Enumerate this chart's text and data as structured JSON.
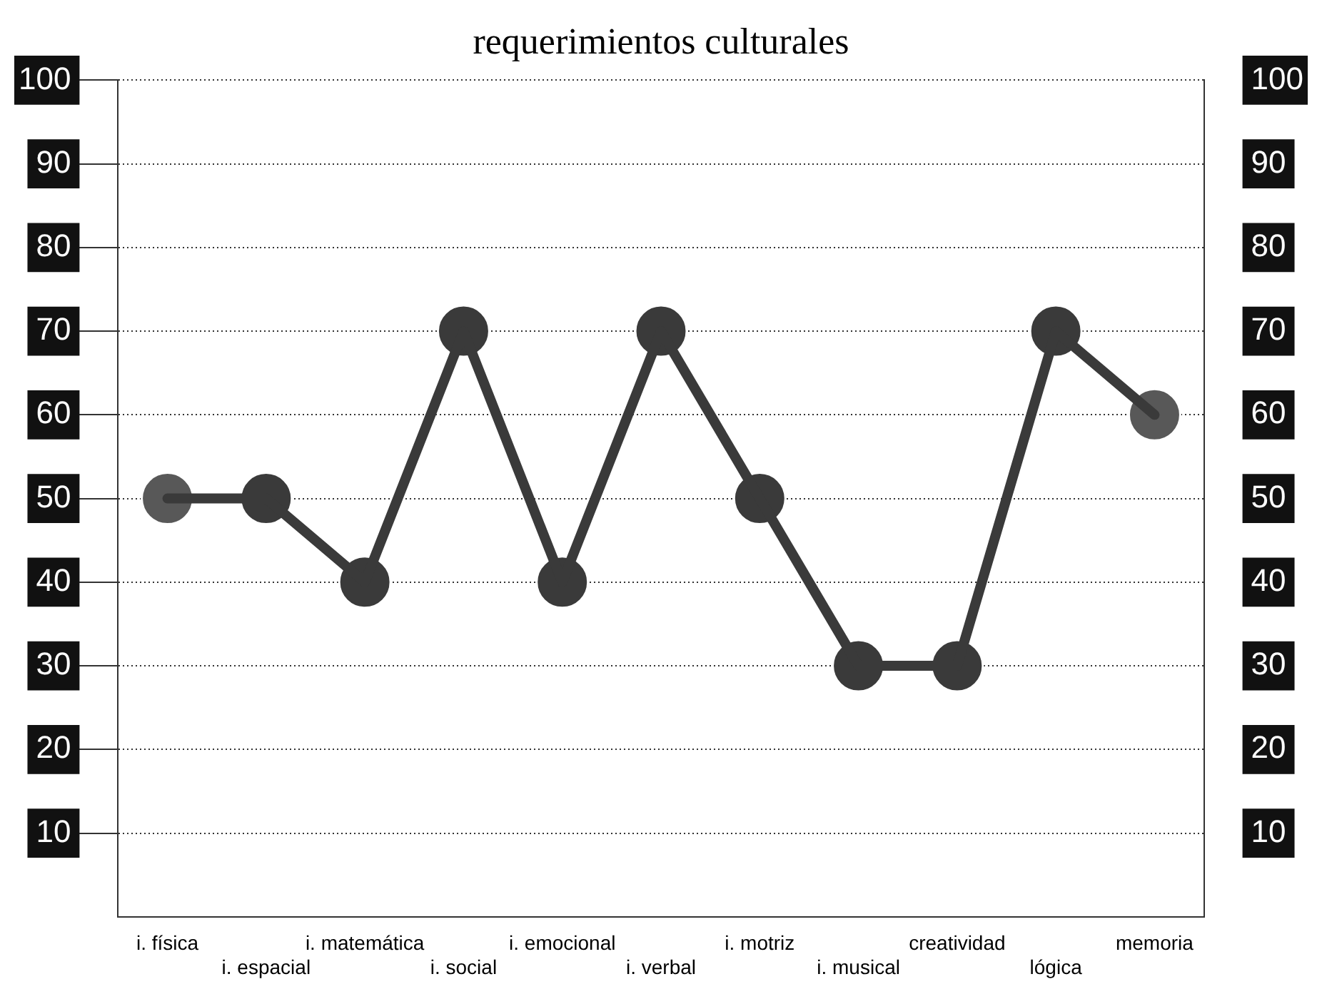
{
  "chart_data": {
    "type": "line",
    "title": "requerimientos culturales",
    "categories": [
      "i. física",
      "i. espacial",
      "i. matemática",
      "i. social",
      "i. emocional",
      "i. verbal",
      "i. motriz",
      "i. musical",
      "creatividad",
      "lógica",
      "memoria"
    ],
    "series": [
      {
        "color": "#3a3a3a",
        "values": [
          50,
          50,
          40,
          70,
          40,
          70,
          50,
          30,
          30,
          70,
          60
        ]
      }
    ],
    "ylim": [
      0,
      100
    ],
    "yticks": [
      10,
      20,
      30,
      40,
      50,
      60,
      70,
      80,
      90,
      100
    ],
    "y2lim": [
      0,
      100
    ],
    "y2ticks": [
      10,
      20,
      30,
      40,
      50,
      60,
      70,
      80,
      90,
      100
    ],
    "grid": "y",
    "marker": "circle",
    "line_style": "solid"
  }
}
